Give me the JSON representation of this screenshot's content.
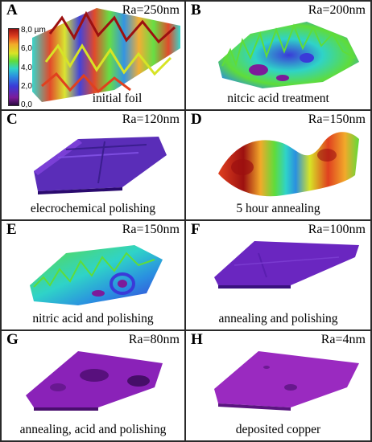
{
  "panels": [
    {
      "letter": "A",
      "ra": "Ra=250nm",
      "caption": "initial foil",
      "palette": "colorful-ridges"
    },
    {
      "letter": "B",
      "ra": "Ra=200nm",
      "caption": "nitcic acid treatment",
      "palette": "blue-green-spiky"
    },
    {
      "letter": "C",
      "ra": "Ra=120nm",
      "caption": "elecrochemical polishing",
      "palette": "violet-flat-grooved"
    },
    {
      "letter": "D",
      "ra": "Ra=150nm",
      "caption": "5 hour annealing",
      "palette": "red-yellow-waves"
    },
    {
      "letter": "E",
      "ra": "Ra=150nm",
      "caption": "nitric acid and polishing",
      "palette": "green-blue-rough"
    },
    {
      "letter": "F",
      "ra": "Ra=100nm",
      "caption": "annealing and polishing",
      "palette": "violet-flat"
    },
    {
      "letter": "G",
      "ra": "Ra=80nm",
      "caption": "annealing, acid and polishing",
      "palette": "magenta-flat-dark-spots"
    },
    {
      "letter": "H",
      "ra": "Ra=4nm",
      "caption": "deposited copper",
      "palette": "magenta-flat"
    }
  ],
  "colorbar": {
    "ticks": [
      "8,0 µm",
      "6,0",
      "4,0",
      "2,0",
      "0,0"
    ],
    "colors": {
      "low": "#2a0a3e",
      "violet": "#7d1b9a",
      "blue": "#3a3ad8",
      "cyan": "#2fd3c8",
      "green": "#5fdc3a",
      "yellow": "#d7e426",
      "orange": "#f2a92a",
      "red": "#e0401f",
      "high": "#9c1010"
    }
  }
}
